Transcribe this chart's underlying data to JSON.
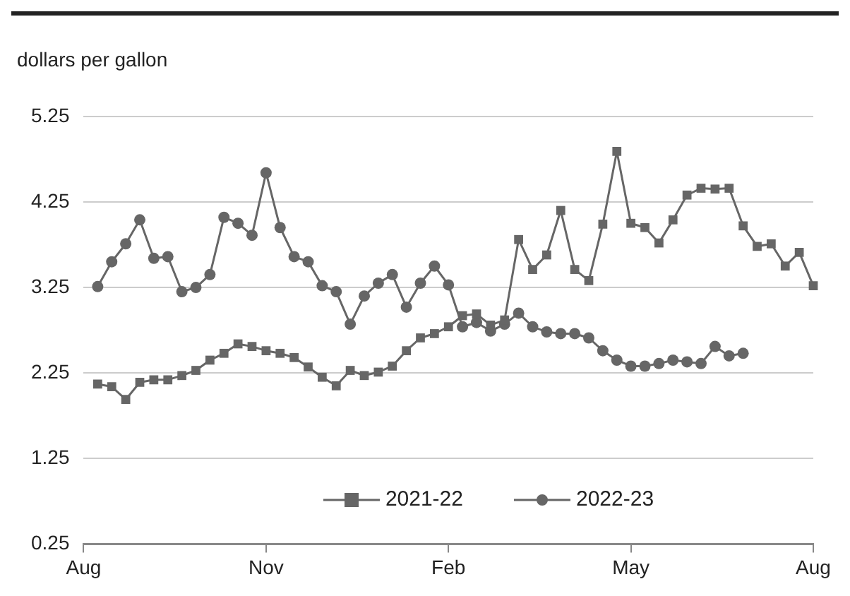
{
  "chart_data": {
    "type": "line",
    "ylabel": "dollars per gallon",
    "ylim": [
      0.25,
      5.25
    ],
    "yticks": [
      0.25,
      1.25,
      2.25,
      3.25,
      4.25,
      5.25
    ],
    "categories": [
      "Aug",
      null,
      null,
      null,
      null,
      null,
      null,
      null,
      null,
      null,
      null,
      null,
      null,
      "Nov",
      null,
      null,
      null,
      null,
      null,
      null,
      null,
      null,
      null,
      null,
      null,
      null,
      "Feb",
      null,
      null,
      null,
      null,
      null,
      null,
      null,
      null,
      null,
      null,
      null,
      null,
      "May",
      null,
      null,
      null,
      null,
      null,
      null,
      null,
      null,
      null,
      null,
      null,
      null,
      "Aug"
    ],
    "grid": "y",
    "legend": "bottom",
    "series": [
      {
        "name": "2021-22",
        "color": "#666666",
        "marker": "square",
        "values": [
          null,
          2.12,
          2.09,
          1.94,
          2.14,
          2.17,
          2.17,
          2.22,
          2.28,
          2.4,
          2.48,
          2.59,
          2.56,
          2.51,
          2.48,
          2.43,
          2.32,
          2.2,
          2.1,
          2.28,
          2.22,
          2.26,
          2.33,
          2.51,
          2.66,
          2.71,
          2.79,
          2.92,
          2.94,
          2.81,
          2.87,
          3.81,
          3.46,
          3.63,
          4.15,
          3.46,
          3.33,
          3.99,
          4.84,
          4.0,
          3.95,
          3.77,
          4.04,
          4.33,
          4.41,
          4.4,
          4.41,
          3.97,
          3.73,
          3.76,
          3.5,
          3.66,
          3.27
        ]
      },
      {
        "name": "2022-23",
        "color": "#666666",
        "marker": "circle",
        "values": [
          null,
          3.26,
          3.55,
          3.76,
          4.04,
          3.59,
          3.61,
          3.2,
          3.25,
          3.4,
          4.07,
          4.0,
          3.86,
          4.59,
          3.95,
          3.61,
          3.55,
          3.27,
          3.2,
          2.82,
          3.15,
          3.3,
          3.4,
          3.02,
          3.3,
          3.5,
          3.28,
          2.79,
          2.84,
          2.74,
          2.82,
          2.95,
          2.79,
          2.73,
          2.71,
          2.71,
          2.66,
          2.51,
          2.4,
          2.33,
          2.33,
          2.36,
          2.4,
          2.38,
          2.36,
          2.56,
          2.45,
          2.48,
          null,
          null,
          null,
          null,
          null
        ]
      }
    ]
  }
}
